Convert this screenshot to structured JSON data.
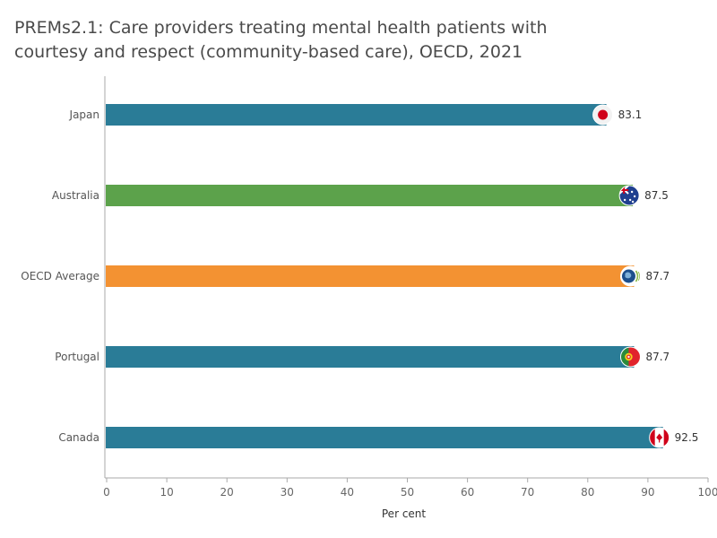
{
  "title": {
    "line1": "PREMs2.1: Care providers treating mental health patients with",
    "line2": "courtesy and respect (community-based care), OECD, 2021"
  },
  "colors": {
    "country": "#2a7c97",
    "australia": "#5ca24b",
    "oecd": "#f39232",
    "axis": "#aaaaaa"
  },
  "chart_data": {
    "type": "bar",
    "orientation": "horizontal",
    "xlabel": "Per cent",
    "ylabel": "",
    "xlim": [
      0,
      100
    ],
    "x_ticks": [
      "0",
      "10",
      "20",
      "30",
      "40",
      "50",
      "60",
      "70",
      "80",
      "90",
      "100"
    ],
    "categories": [
      "Japan",
      "Australia",
      "OECD Average",
      "Portugal",
      "Canada"
    ],
    "values": [
      83.1,
      87.5,
      87.7,
      87.7,
      92.5
    ],
    "value_labels": [
      "83.1",
      "87.5",
      "87.7",
      "87.7",
      "92.5"
    ],
    "bar_colors": [
      "#2a7c97",
      "#5ca24b",
      "#f39232",
      "#2a7c97",
      "#2a7c97"
    ],
    "flags": [
      "japan-flag-icon",
      "australia-flag-icon",
      "oecd-logo-icon",
      "portugal-flag-icon",
      "canada-flag-icon"
    ],
    "grid": false
  }
}
